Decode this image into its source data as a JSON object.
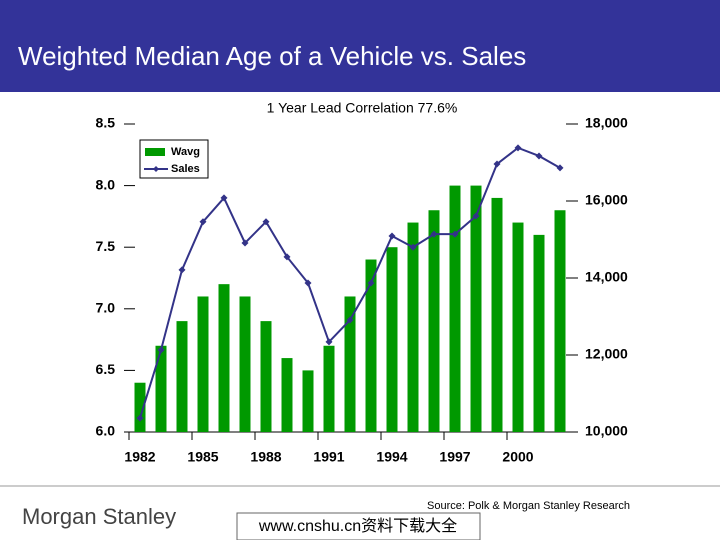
{
  "chart_data": {
    "type": "bar",
    "title": "Weighted Median Age of a Vehicle vs. Sales",
    "subtitle": "1 Year Lead Correlation 77.6%",
    "source": "Source: Polk & Morgan Stanley Research",
    "categories": [
      "1982",
      null,
      null,
      "1985",
      null,
      null,
      "1988",
      null,
      null,
      "1991",
      null,
      null,
      "1994",
      null,
      null,
      "1997",
      null,
      null,
      "2000",
      null,
      null
    ],
    "series": [
      {
        "name": "Wavg",
        "type": "bar",
        "color": "#009900",
        "axis": "y",
        "values": [
          6.4,
          6.7,
          6.9,
          7.1,
          7.2,
          7.1,
          6.9,
          6.6,
          6.5,
          6.7,
          7.1,
          7.4,
          7.5,
          7.7,
          7.8,
          8.0,
          8.0,
          7.9,
          7.7,
          7.6,
          7.8
        ]
      },
      {
        "name": "Sales",
        "type": "line",
        "color": "#333388",
        "axis": "y2",
        "values": [
          10360,
          12130,
          14210,
          15460,
          16080,
          14910,
          15460,
          14550,
          13870,
          12340,
          12910,
          13870,
          15090,
          14800,
          15140,
          15140,
          15610,
          16960,
          17380,
          17170,
          16860
        ]
      }
    ],
    "ylim": [
      6.0,
      8.5
    ],
    "yticks": [
      {
        "value": 6,
        "label": "6.0"
      },
      6.5,
      {
        "value": 7,
        "label": "7.0"
      },
      7.5,
      {
        "value": 8,
        "label": "8.0"
      },
      8.5
    ],
    "y2lim": [
      10000,
      18000
    ],
    "y2ticks": [
      {
        "value": 10000,
        "label": "10,000"
      },
      {
        "value": 12000,
        "label": "12,000"
      },
      {
        "value": 14000,
        "label": "14,000"
      },
      {
        "value": 16000,
        "label": "16,000"
      },
      {
        "value": 18000,
        "label": "18,000"
      }
    ],
    "legend": "top-left"
  },
  "footer": {
    "logo": "Morgan Stanley",
    "watermark": "www.cnshu.cn资料下载大全"
  }
}
